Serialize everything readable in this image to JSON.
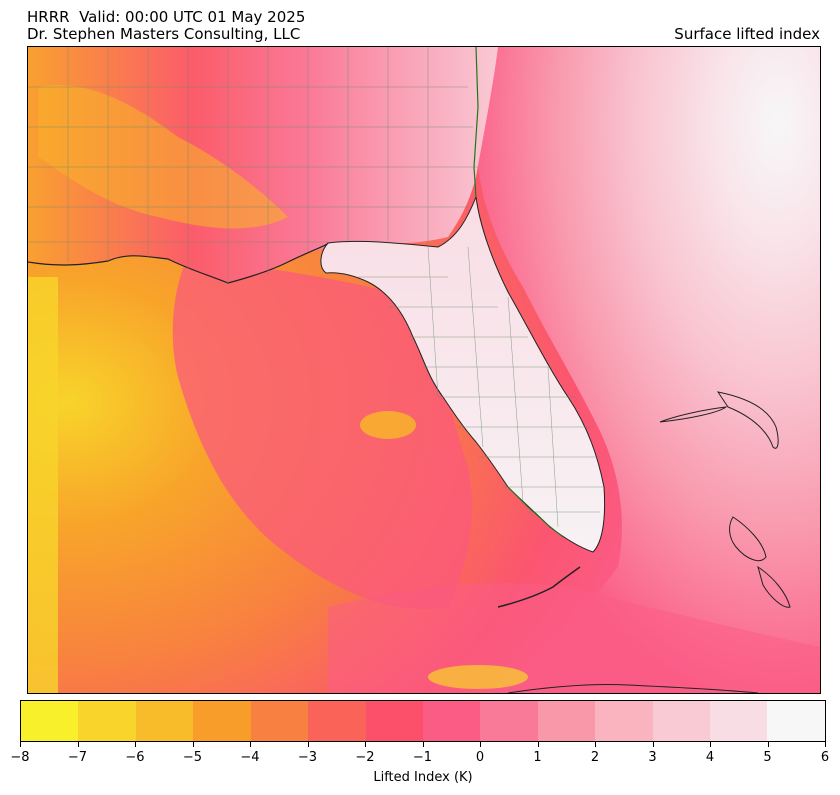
{
  "header": {
    "title_line1": "HRRR  Valid: 00:00 UTC 01 May 2025",
    "title_line2": "Dr. Stephen Masters Consulting, LLC",
    "title_right": "Surface lifted index"
  },
  "colorbar": {
    "label": "Lifted Index (K)",
    "ticks": [
      "-8",
      "-7",
      "-6",
      "-5",
      "-4",
      "-3",
      "-2",
      "-1",
      "0",
      "1",
      "2",
      "3",
      "4",
      "5",
      "6"
    ],
    "colors": [
      "#f7f02a",
      "#f9d42a",
      "#f8bc2a",
      "#f89d2a",
      "#f88040",
      "#fa6458",
      "#fc4f6a",
      "#fb5c86",
      "#f97a98",
      "#f998a8",
      "#f9b4c0",
      "#f9c9d4",
      "#f9dde5",
      "#f7f7f7"
    ]
  },
  "map": {
    "colors": {
      "land_outline": "#222222",
      "county_lines": "#6b8a6b",
      "coast_green": "#1a7a1a"
    }
  }
}
